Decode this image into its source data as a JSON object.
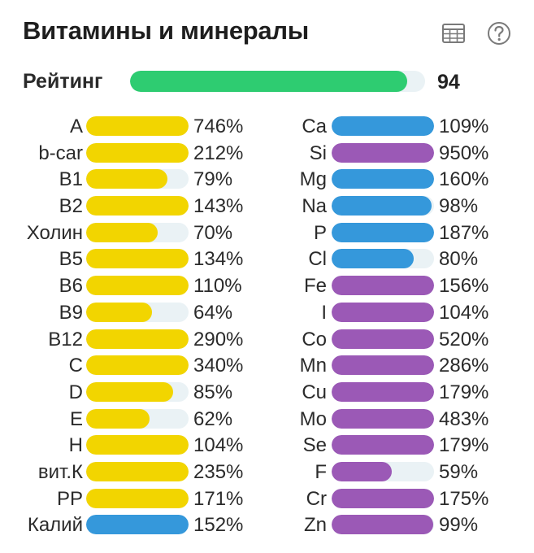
{
  "header": {
    "title": "Витамины и минералы",
    "table_icon": "table-icon",
    "help_icon": "question-circle-icon"
  },
  "rating": {
    "label": "Рейтинг",
    "value": "94",
    "fraction": 0.94,
    "color": "#2ecc71"
  },
  "colors": {
    "vitamin": "#f2d500",
    "mineral_blue": "#3598db",
    "mineral_purple": "#9b59b6",
    "track": "#eaf2f5"
  },
  "left_column": [
    {
      "label": "A",
      "pct": "746%",
      "value": 746,
      "color": "vitamin"
    },
    {
      "label": "b-car",
      "pct": "212%",
      "value": 212,
      "color": "vitamin"
    },
    {
      "label": "B1",
      "pct": "79%",
      "value": 79,
      "color": "vitamin"
    },
    {
      "label": "B2",
      "pct": "143%",
      "value": 143,
      "color": "vitamin"
    },
    {
      "label": "Холин",
      "pct": "70%",
      "value": 70,
      "color": "vitamin"
    },
    {
      "label": "B5",
      "pct": "134%",
      "value": 134,
      "color": "vitamin"
    },
    {
      "label": "B6",
      "pct": "110%",
      "value": 110,
      "color": "vitamin"
    },
    {
      "label": "B9",
      "pct": "64%",
      "value": 64,
      "color": "vitamin"
    },
    {
      "label": "B12",
      "pct": "290%",
      "value": 290,
      "color": "vitamin"
    },
    {
      "label": "C",
      "pct": "340%",
      "value": 340,
      "color": "vitamin"
    },
    {
      "label": "D",
      "pct": "85%",
      "value": 85,
      "color": "vitamin"
    },
    {
      "label": "E",
      "pct": "62%",
      "value": 62,
      "color": "vitamin"
    },
    {
      "label": "H",
      "pct": "104%",
      "value": 104,
      "color": "vitamin"
    },
    {
      "label": "вит.К",
      "pct": "235%",
      "value": 235,
      "color": "vitamin"
    },
    {
      "label": "PP",
      "pct": "171%",
      "value": 171,
      "color": "vitamin"
    },
    {
      "label": "Калий",
      "pct": "152%",
      "value": 152,
      "color": "mineral_blue"
    }
  ],
  "right_column": [
    {
      "label": "Ca",
      "pct": "109%",
      "value": 109,
      "color": "mineral_blue"
    },
    {
      "label": "Si",
      "pct": "950%",
      "value": 950,
      "color": "mineral_purple"
    },
    {
      "label": "Mg",
      "pct": "160%",
      "value": 160,
      "color": "mineral_blue"
    },
    {
      "label": "Na",
      "pct": "98%",
      "value": 98,
      "color": "mineral_blue"
    },
    {
      "label": "P",
      "pct": "187%",
      "value": 187,
      "color": "mineral_blue"
    },
    {
      "label": "Cl",
      "pct": "80%",
      "value": 80,
      "color": "mineral_blue"
    },
    {
      "label": "Fe",
      "pct": "156%",
      "value": 156,
      "color": "mineral_purple"
    },
    {
      "label": "I",
      "pct": "104%",
      "value": 104,
      "color": "mineral_purple"
    },
    {
      "label": "Co",
      "pct": "520%",
      "value": 520,
      "color": "mineral_purple"
    },
    {
      "label": "Mn",
      "pct": "286%",
      "value": 286,
      "color": "mineral_purple"
    },
    {
      "label": "Cu",
      "pct": "179%",
      "value": 179,
      "color": "mineral_purple"
    },
    {
      "label": "Mo",
      "pct": "483%",
      "value": 483,
      "color": "mineral_purple"
    },
    {
      "label": "Se",
      "pct": "179%",
      "value": 179,
      "color": "mineral_purple"
    },
    {
      "label": "F",
      "pct": "59%",
      "value": 59,
      "color": "mineral_purple"
    },
    {
      "label": "Cr",
      "pct": "175%",
      "value": 175,
      "color": "mineral_purple"
    },
    {
      "label": "Zn",
      "pct": "99%",
      "value": 99,
      "color": "mineral_purple"
    }
  ]
}
